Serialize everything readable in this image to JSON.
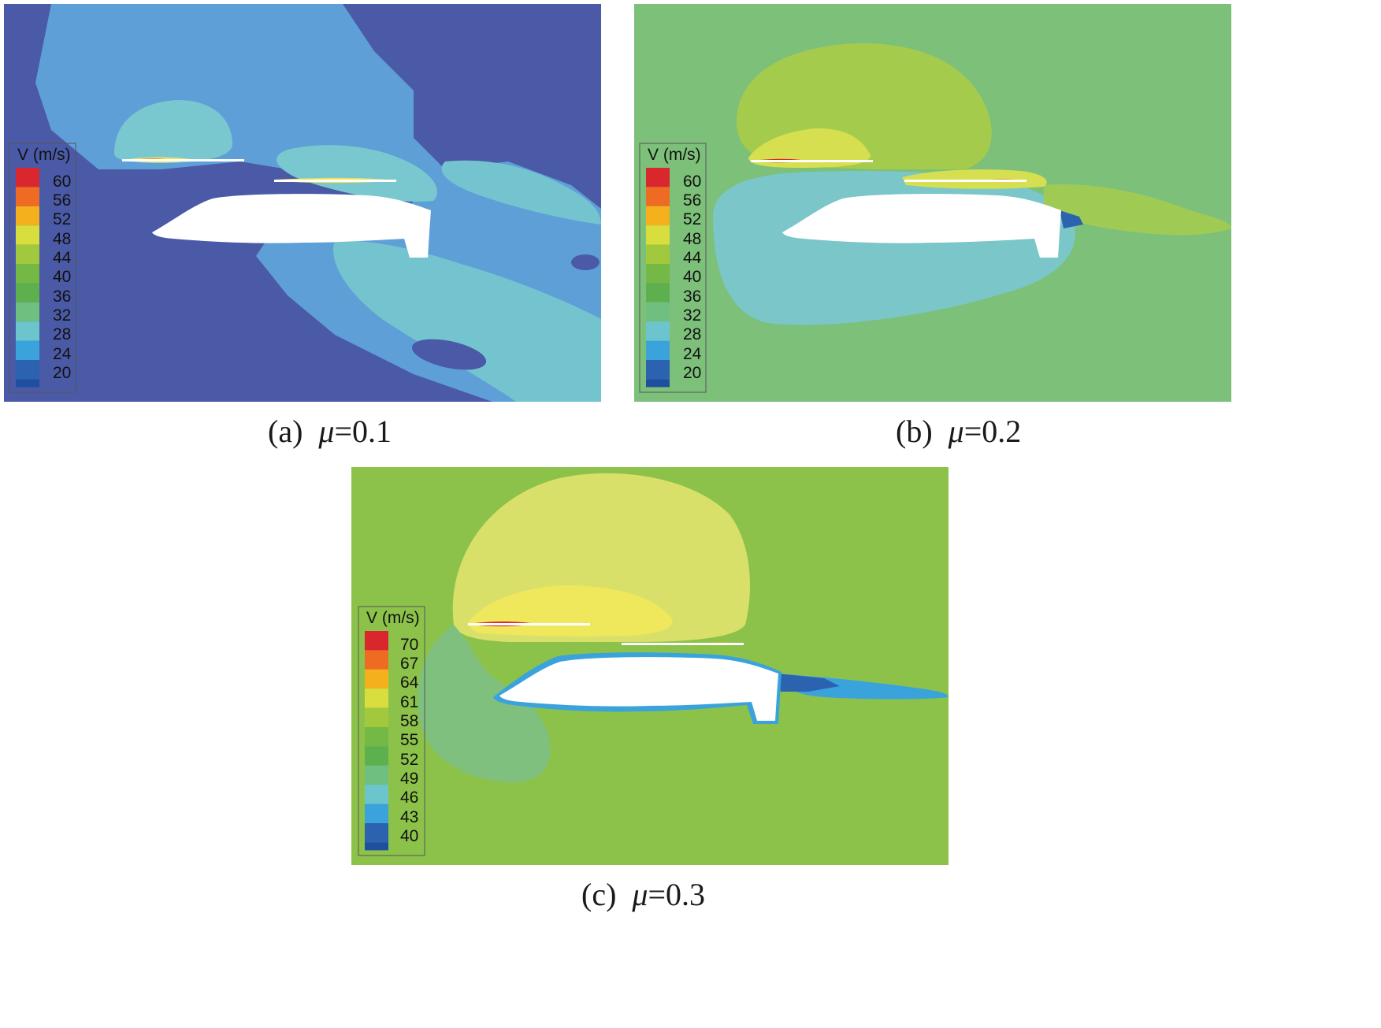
{
  "figure": {
    "colormap": [
      "#1f4f9e",
      "#2c63b0",
      "#3aa3dc",
      "#6cc5cc",
      "#6fbf80",
      "#5eb04f",
      "#74b845",
      "#a2c83d",
      "#d8de3e",
      "#f5b11c",
      "#ef6a22",
      "#d9272d"
    ],
    "panels": [
      {
        "id": "a",
        "caption_prefix": "(a)",
        "caption_symbol": "μ",
        "caption_value": "=0.1",
        "legend_title": "V (m/s)",
        "legend_ticks": [
          "60",
          "56",
          "52",
          "48",
          "44",
          "40",
          "36",
          "32",
          "28",
          "24",
          "20"
        ],
        "background_color": "#4a5aa6",
        "regions": [
          {
            "name": "wake-envelope",
            "color": "#5f9fd8"
          },
          {
            "name": "rotor-upper-bubble",
            "color": "#7ac8cf"
          },
          {
            "name": "lower-wake-band",
            "color": "#74c4d0"
          }
        ]
      },
      {
        "id": "b",
        "caption_prefix": "(b)",
        "caption_symbol": "μ",
        "caption_value": "=0.2",
        "legend_title": "V (m/s)",
        "legend_ticks": [
          "60",
          "56",
          "52",
          "48",
          "44",
          "40",
          "36",
          "32",
          "28",
          "24",
          "20"
        ],
        "background_color": "#7dc07a",
        "regions": [
          {
            "name": "upper-bubble",
            "color": "#a5cb4c"
          },
          {
            "name": "rotor-tip-zone",
            "color": "#d6df4f"
          },
          {
            "name": "fuselage-envelope",
            "color": "#7bc6c8"
          }
        ]
      },
      {
        "id": "c",
        "caption_prefix": "(c)",
        "caption_symbol": "μ",
        "caption_value": "=0.3",
        "legend_title": "V (m/s)",
        "legend_ticks": [
          "70",
          "67",
          "64",
          "61",
          "58",
          "55",
          "52",
          "49",
          "46",
          "43",
          "40"
        ],
        "background_color": "#8cc24a",
        "regions": [
          {
            "name": "upper-bubble",
            "color": "#d9e06a"
          },
          {
            "name": "rotor-core",
            "color": "#efe85c"
          },
          {
            "name": "front-lobe",
            "color": "#7fc07e"
          }
        ]
      }
    ]
  }
}
